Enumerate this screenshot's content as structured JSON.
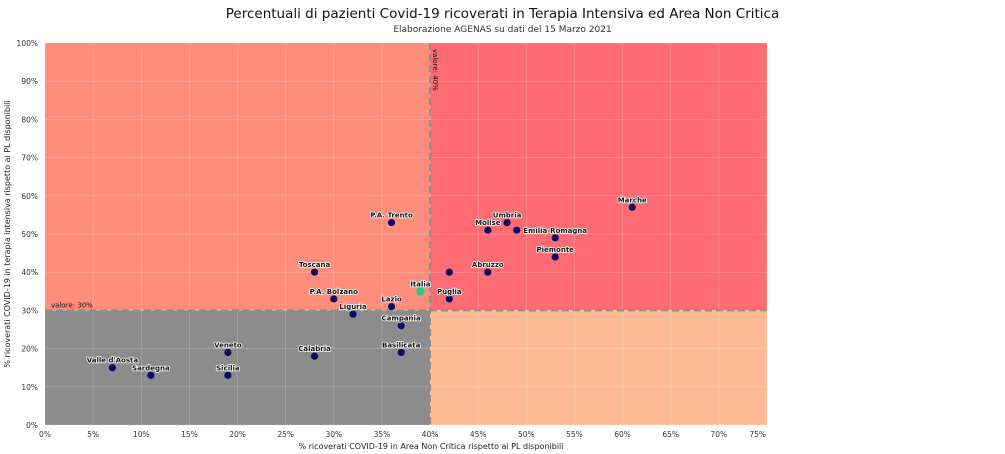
{
  "chart_data": {
    "type": "scatter",
    "title": "Percentuali di pazienti Covid-19 ricoverati in Terapia Intensiva ed Area Non Critica",
    "subtitle": "Elaborazione AGENAS su dati del 15 Marzo 2021",
    "xlabel": "% ricoverati COVID-19 in Area Non Critica rispetto ai PL disponibili",
    "ylabel": "% ricoverati COVID-19 in terapia intensiva rispetto ai PL disponibili",
    "xlim": [
      0,
      75
    ],
    "ylim": [
      0,
      100
    ],
    "x_ticks": [
      0,
      5,
      10,
      15,
      20,
      25,
      30,
      35,
      40,
      45,
      50,
      55,
      60,
      65,
      70,
      75
    ],
    "x_tick_labels": [
      "0%",
      "5%",
      "10%",
      "15%",
      "20%",
      "25%",
      "30%",
      "35%",
      "40%",
      "45%",
      "50%",
      "55%",
      "60%",
      "65%",
      "70%",
      "75%"
    ],
    "y_ticks": [
      0,
      10,
      20,
      30,
      40,
      50,
      60,
      70,
      80,
      90,
      100
    ],
    "y_tick_labels": [
      "0%",
      "10%",
      "20%",
      "30%",
      "40%",
      "50%",
      "60%",
      "70%",
      "80%",
      "90%",
      "100%"
    ],
    "grid": true,
    "thresholds": {
      "x": 40,
      "y": 30,
      "x_label": "valore: 40%",
      "y_label": "valore: 30%"
    },
    "quadrant_colors": {
      "top_left": "#fe8e7b",
      "top_right": "#fe6b72",
      "bottom_left": "#8c8c8c",
      "bottom_right": "#febb93"
    },
    "point_color": "#0b0b63",
    "highlight_color": "#27c77c",
    "points": [
      {
        "label": "Valle d'Aosta",
        "x": 7,
        "y": 15
      },
      {
        "label": "Sardegna",
        "x": 11,
        "y": 13
      },
      {
        "label": "Veneto",
        "x": 19,
        "y": 19
      },
      {
        "label": "Sicilia",
        "x": 19,
        "y": 13
      },
      {
        "label": "Calabria",
        "x": 28,
        "y": 18
      },
      {
        "label": "Toscana",
        "x": 28,
        "y": 40
      },
      {
        "label": "P.A. Bolzano",
        "x": 30,
        "y": 33
      },
      {
        "label": "Liguria",
        "x": 32,
        "y": 29
      },
      {
        "label": "P.A. Trento",
        "x": 36,
        "y": 53
      },
      {
        "label": "Lazio",
        "x": 36,
        "y": 31
      },
      {
        "label": "Campania",
        "x": 37,
        "y": 26
      },
      {
        "label": "Basilicata",
        "x": 37,
        "y": 19
      },
      {
        "label": "Italia",
        "x": 39,
        "y": 35,
        "highlight": true
      },
      {
        "label": "",
        "x": 42,
        "y": 40
      },
      {
        "label": "Puglia",
        "x": 42,
        "y": 33
      },
      {
        "label": "Abruzzo",
        "x": 46,
        "y": 40
      },
      {
        "label": "Molise",
        "x": 46,
        "y": 51
      },
      {
        "label": "Umbria",
        "x": 48,
        "y": 53
      },
      {
        "label": "",
        "x": 49,
        "y": 51
      },
      {
        "label": "Emilia-Romagna",
        "x": 53,
        "y": 49
      },
      {
        "label": "Piemonte",
        "x": 53,
        "y": 44
      },
      {
        "label": "Marche",
        "x": 61,
        "y": 57
      }
    ]
  }
}
